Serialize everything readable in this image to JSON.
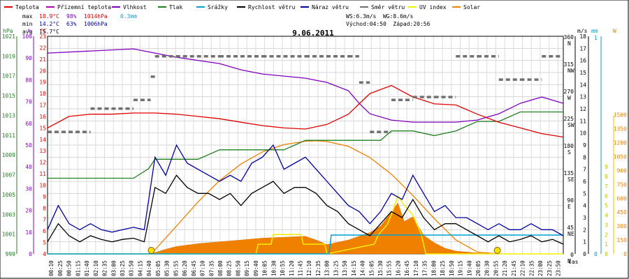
{
  "chart_data": {
    "type": "line",
    "title": "9.06.2011",
    "legend": [
      {
        "label": "Teplota",
        "color": "#e00000"
      },
      {
        "label": "Přízemní teplota",
        "color": "#b000b0"
      },
      {
        "label": "Vlhkost",
        "color": "#8000c0"
      },
      {
        "label": "Tlak",
        "color": "#208020"
      },
      {
        "label": "Srážky",
        "color": "#00a0d0"
      },
      {
        "label": "Rychlost větru",
        "color": "#000000"
      },
      {
        "label": "Náraz větru",
        "color": "#0000a0"
      },
      {
        "label": "Směr větru",
        "color": "#707070"
      },
      {
        "label": "UV index",
        "color": "#f0f000"
      },
      {
        "label": "Solar",
        "color": "#f08000"
      }
    ],
    "stats": {
      "max": {
        "label": "max",
        "temp": "18.9°C",
        "hum": "98%",
        "press": "1014hPa",
        "rain": "0.3mm"
      },
      "min": {
        "label": "min",
        "temp": "14.2°C",
        "hum": "63%",
        "press": "1006hPa"
      },
      "avg": {
        "label": "avg",
        "temp": "15.7°C"
      }
    },
    "wind_info": "WS:6.3m/s  WG:8.6m/s",
    "sun_info": "Východ:04:50  Západ:20:56",
    "axes": {
      "hpa": {
        "label": "hPa",
        "ticks": [
          "1021",
          "1019",
          "1017",
          "1015",
          "1013",
          "1011",
          "1009",
          "1007",
          "1005",
          "1003",
          "1001",
          "999"
        ]
      },
      "pct": {
        "label": "%",
        "ticks": [
          "100",
          "90",
          "80",
          "70",
          "60",
          "50",
          "40",
          "30",
          "20",
          "10",
          "0"
        ]
      },
      "degc": {
        "label": "°C",
        "ticks": [
          "23",
          "22",
          "21",
          "20",
          "19",
          "18",
          "17",
          "16",
          "15",
          "14",
          "13",
          "12",
          "11",
          "10",
          "9",
          "8",
          "7",
          "6",
          "5",
          "4"
        ]
      },
      "dir": {
        "ticks": [
          "360",
          "315",
          "270",
          "225",
          "180",
          "135",
          "90",
          "45",
          "0"
        ],
        "names": [
          "N",
          "NW",
          "W",
          "SW",
          "S",
          "SE",
          "E",
          "NE",
          "N"
        ]
      },
      "ms": {
        "label": "m/s",
        "ticks": [
          "18",
          "17",
          "16",
          "15",
          "14",
          "13",
          "12",
          "11",
          "10",
          "9",
          "8",
          "7",
          "6",
          "5",
          "4",
          "3",
          "2",
          "1",
          "0"
        ]
      },
      "mm": {
        "label": "mm",
        "ticks": [
          "1",
          "0"
        ]
      },
      "w": {
        "label": "W",
        "ticks": [
          "1500",
          "1350",
          "1200",
          "1050",
          "900",
          "750",
          "600",
          "450",
          "300",
          "150",
          "0"
        ]
      },
      "uv": {
        "ticks": [
          "9",
          "8",
          "7",
          "6",
          "5",
          "4",
          "3",
          "2",
          "1",
          "0"
        ]
      },
      "xlabel": "čas"
    },
    "time_labels": [
      "00:10",
      "00:25",
      "00:50",
      "01:15",
      "01:40",
      "02:10",
      "02:35",
      "03:00",
      "03:25",
      "03:50",
      "04:15",
      "04:40",
      "05:05",
      "05:30",
      "05:55",
      "06:20",
      "06:45",
      "07:10",
      "07:35",
      "08:00",
      "08:25",
      "08:50",
      "09:15",
      "09:40",
      "10:05",
      "10:30",
      "10:55",
      "11:20",
      "11:45",
      "12:10",
      "12:35",
      "13:00",
      "13:25",
      "13:50",
      "14:15",
      "14:40",
      "15:05",
      "15:30",
      "15:55",
      "16:20",
      "16:45",
      "17:10",
      "17:35",
      "18:00",
      "18:25",
      "18:50",
      "19:15",
      "19:40",
      "20:05",
      "20:30",
      "20:55",
      "21:20",
      "21:45",
      "22:10",
      "22:35",
      "23:00",
      "23:25",
      "23:50"
    ],
    "series": {
      "temperature_c": {
        "t": [
          0,
          1,
          2,
          3,
          4,
          5,
          6,
          7,
          8,
          9,
          10,
          11,
          12,
          13,
          14,
          15,
          16,
          17,
          18,
          19,
          20,
          21,
          22,
          23,
          24
        ],
        "v": [
          15.0,
          16.0,
          16.2,
          16.2,
          16.3,
          16.3,
          16.2,
          16.0,
          15.8,
          15.5,
          15.2,
          15.0,
          14.9,
          15.3,
          16.2,
          18.0,
          18.7,
          17.7,
          17.1,
          17.0,
          16.2,
          15.5,
          15.0,
          14.5,
          14.2
        ]
      },
      "humidity_pct": {
        "t": [
          0,
          2,
          4,
          5,
          6,
          8,
          9,
          10,
          11,
          12,
          13,
          14,
          14.5,
          15,
          16,
          17,
          18,
          19,
          20,
          21,
          22,
          23,
          24
        ],
        "v": [
          96,
          97,
          98,
          96,
          94,
          91,
          88,
          86,
          85,
          84,
          82,
          78,
          72,
          67,
          64,
          63,
          63,
          63,
          64,
          67,
          72,
          75,
          72
        ]
      },
      "pressure_hpa": {
        "t": [
          0,
          4,
          4.7,
          5,
          6,
          7,
          8,
          9,
          10,
          11,
          12,
          13,
          14,
          14.8,
          15.5,
          16,
          17,
          18,
          19,
          20,
          21,
          22,
          24
        ],
        "v": [
          1007,
          1007,
          1008,
          1009,
          1009,
          1009,
          1010,
          1010,
          1010,
          1010,
          1011,
          1011,
          1011,
          1011,
          1011,
          1012,
          1012,
          1011.5,
          1012,
          1013,
          1013,
          1014,
          1014
        ]
      },
      "rain_total_mm": {
        "t": [
          0,
          13.1,
          13.2,
          13.3,
          24
        ],
        "v": [
          0,
          0,
          0.3,
          0.3,
          0.3
        ]
      },
      "wind_speed_ms": {
        "t": [
          0,
          0.5,
          1,
          1.5,
          2,
          2.5,
          3,
          3.5,
          4,
          4.5,
          5,
          5.5,
          6,
          6.5,
          7,
          7.5,
          8,
          8.5,
          9,
          9.5,
          10,
          10.5,
          11,
          11.5,
          12,
          12.5,
          13,
          13.5,
          14,
          14.5,
          15,
          15.5,
          16,
          16.5,
          17,
          17.5,
          18,
          18.5,
          19,
          19.5,
          20,
          20.5,
          21,
          21.5,
          22,
          22.5,
          23,
          23.5,
          24
        ],
        "v": [
          1.0,
          2.5,
          1.5,
          1.0,
          1.5,
          1.2,
          1.0,
          1.2,
          1.3,
          1.0,
          5.5,
          5.0,
          6.5,
          5.5,
          5.0,
          5.0,
          4.5,
          5.0,
          4.0,
          5.0,
          5.5,
          6.0,
          5.0,
          5.5,
          5.5,
          5.0,
          4.0,
          3.5,
          2.5,
          2.0,
          1.5,
          2.5,
          3.5,
          3.0,
          4.5,
          3.0,
          2.0,
          2.5,
          2.5,
          2.0,
          1.5,
          1.0,
          1.5,
          1.0,
          1.2,
          1.5,
          1.0,
          1.2,
          0.8
        ]
      },
      "wind_gust_ms": {
        "t": [
          0,
          0.5,
          1,
          1.5,
          2,
          2.5,
          3,
          3.5,
          4,
          4.5,
          5,
          5.5,
          6,
          6.5,
          7,
          7.5,
          8,
          8.5,
          9,
          9.5,
          10,
          10.5,
          11,
          11.5,
          12,
          12.5,
          13,
          13.5,
          14,
          14.5,
          15,
          15.5,
          16,
          16.5,
          17,
          17.5,
          18,
          18.5,
          19,
          19.5,
          20,
          20.5,
          21,
          21.5,
          22,
          22.5,
          23,
          23.5,
          24
        ],
        "v": [
          2.0,
          4.0,
          2.5,
          2.0,
          2.5,
          2.0,
          1.8,
          2.0,
          2.2,
          2.0,
          8.0,
          6.5,
          9.0,
          7.5,
          7.0,
          6.5,
          6.0,
          6.5,
          6.0,
          7.5,
          8.0,
          9.0,
          7.0,
          7.5,
          8.0,
          7.0,
          6.0,
          5.0,
          4.0,
          3.5,
          2.5,
          3.5,
          5.0,
          4.5,
          6.5,
          5.0,
          3.5,
          4.0,
          3.0,
          3.0,
          2.5,
          2.0,
          2.5,
          2.0,
          2.0,
          2.5,
          2.0,
          2.0,
          1.5
        ]
      },
      "wind_dir_deg": {
        "t": [
          0,
          2,
          4,
          4.8,
          5,
          8,
          10,
          12,
          14,
          14.5,
          15,
          16,
          17,
          18,
          19,
          20,
          21,
          22,
          23,
          24
        ],
        "v": [
          210,
          250,
          265,
          305,
          340,
          340,
          340,
          340,
          340,
          295,
          210,
          265,
          270,
          270,
          340,
          340,
          300,
          300,
          340,
          340
        ]
      },
      "solar_w": {
        "t": [
          0,
          4.8,
          5.5,
          6,
          7,
          8,
          9,
          10,
          11,
          12,
          12.5,
          13,
          14,
          15,
          15.5,
          16,
          16.3,
          16.6,
          17,
          17.5,
          18,
          18.5,
          19,
          20,
          20.9,
          24
        ],
        "v": [
          0,
          0,
          50,
          80,
          110,
          130,
          150,
          170,
          180,
          190,
          150,
          100,
          150,
          230,
          300,
          450,
          550,
          350,
          400,
          200,
          120,
          60,
          30,
          10,
          0,
          0
        ]
      },
      "solar_theoretical_w": {
        "t": [
          4.83,
          6,
          7,
          8,
          9,
          10,
          11,
          12,
          12.5,
          13,
          14,
          15,
          16,
          17,
          18,
          19,
          20,
          20.93
        ],
        "v": [
          0,
          300,
          560,
          790,
          970,
          1100,
          1180,
          1215,
          1220,
          1212,
          1160,
          1040,
          860,
          630,
          380,
          150,
          20,
          0
        ]
      },
      "uv_index": {
        "t": [
          0,
          9.7,
          9.8,
          10.4,
          10.5,
          11.8,
          11.9,
          12.9,
          13,
          15.2,
          15.4,
          15.8,
          16,
          16.3,
          16.6,
          17,
          17.4,
          17.6,
          24
        ],
        "v": [
          0,
          0,
          1,
          1,
          2,
          2,
          1,
          1,
          0,
          1,
          2,
          3,
          4,
          6,
          5,
          4,
          2,
          0,
          0
        ]
      }
    }
  }
}
